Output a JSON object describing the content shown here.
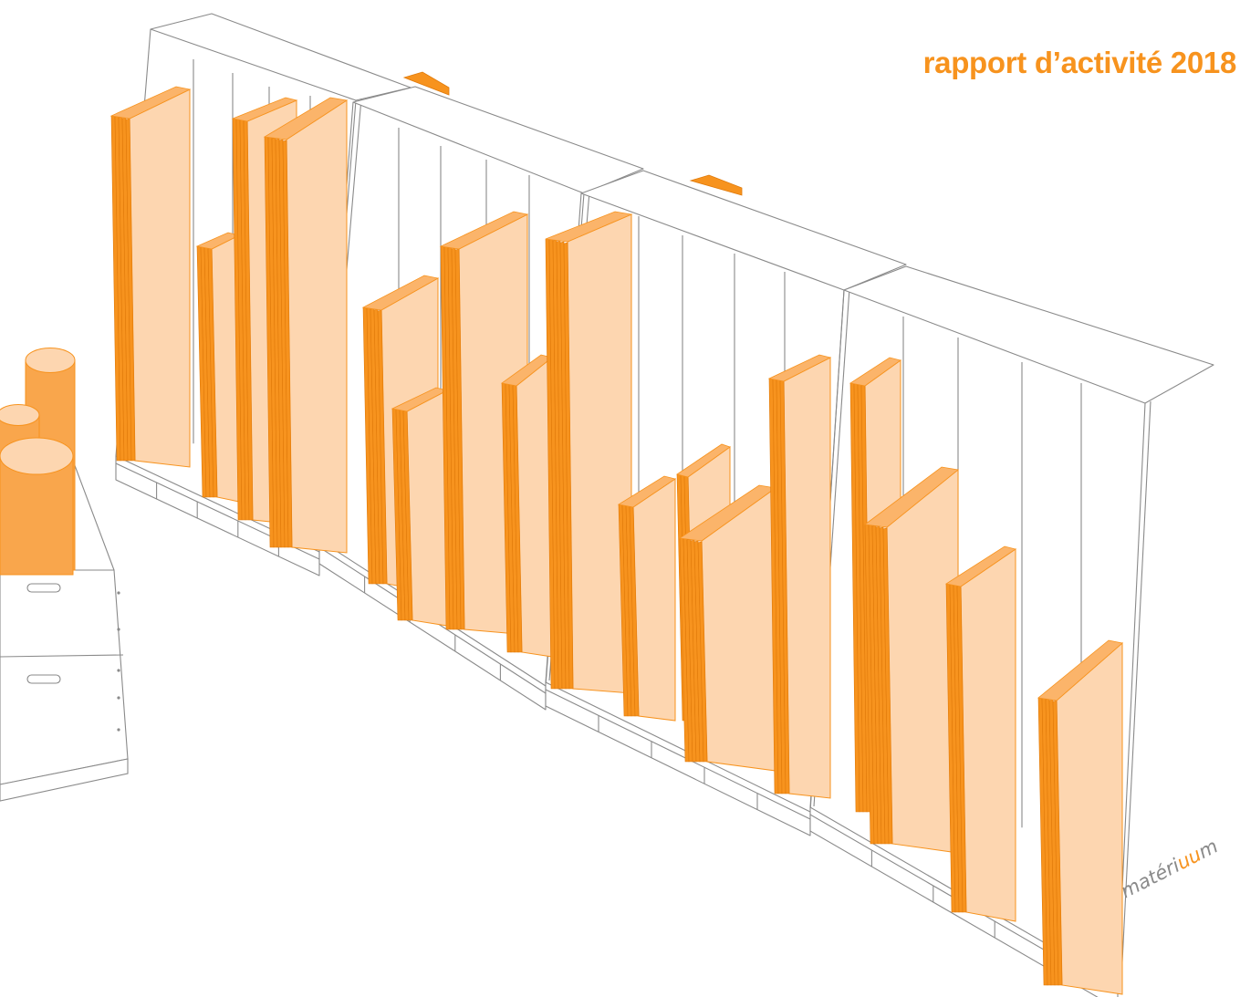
{
  "cover": {
    "title": "rapport d’activité 2018"
  },
  "logo": {
    "prefix": "matéri",
    "highlight": "uu",
    "suffix": "m"
  },
  "colors": {
    "accent": "#f7931e",
    "panel_face": "#fdd6b0",
    "panel_edge": "#f7931e",
    "line": "#8a8a8a",
    "background": "#ffffff"
  }
}
